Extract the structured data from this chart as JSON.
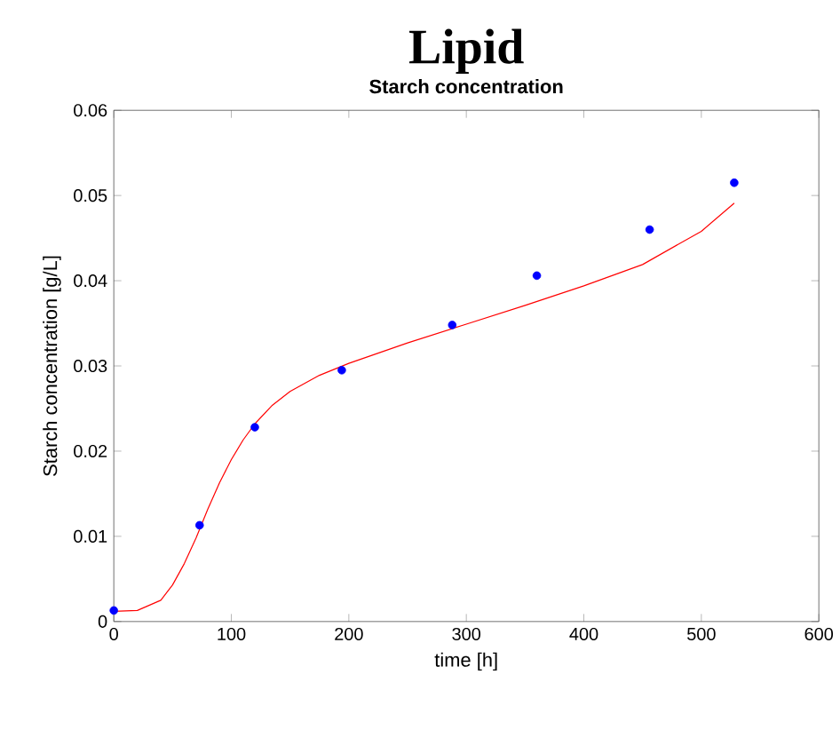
{
  "chart_data": {
    "type": "scatter",
    "title": "Lipid",
    "subtitle": "Starch concentration",
    "xlabel": "time [h]",
    "ylabel": "Starch concentration [g/L]",
    "xlim": [
      0,
      600
    ],
    "ylim": [
      0,
      0.06
    ],
    "xticks": [
      0,
      100,
      200,
      300,
      400,
      500,
      600
    ],
    "yticks": [
      0,
      0.01,
      0.02,
      0.03,
      0.04,
      0.05,
      0.06
    ],
    "grid": false,
    "series": [
      {
        "color": "#0000ff",
        "marker": "circle",
        "x": [
          0,
          73,
          120,
          194,
          288,
          360,
          456,
          528
        ],
        "values": [
          0.0013,
          0.0113,
          0.0228,
          0.0295,
          0.0348,
          0.0406,
          0.046,
          0.0515
        ]
      },
      {
        "type": "line",
        "color": "#ff0000",
        "marker": "none",
        "line_style": "solid",
        "x": [
          0,
          20,
          40,
          50,
          60,
          70,
          80,
          90,
          100,
          110,
          120,
          135,
          150,
          175,
          200,
          250,
          300,
          350,
          400,
          450,
          500,
          528
        ],
        "values": [
          0.0012,
          0.0013,
          0.0025,
          0.0043,
          0.0068,
          0.0098,
          0.0132,
          0.0163,
          0.019,
          0.0213,
          0.0232,
          0.0254,
          0.027,
          0.0289,
          0.0303,
          0.0327,
          0.0349,
          0.0371,
          0.0394,
          0.0419,
          0.0458,
          0.0491
        ]
      }
    ]
  }
}
